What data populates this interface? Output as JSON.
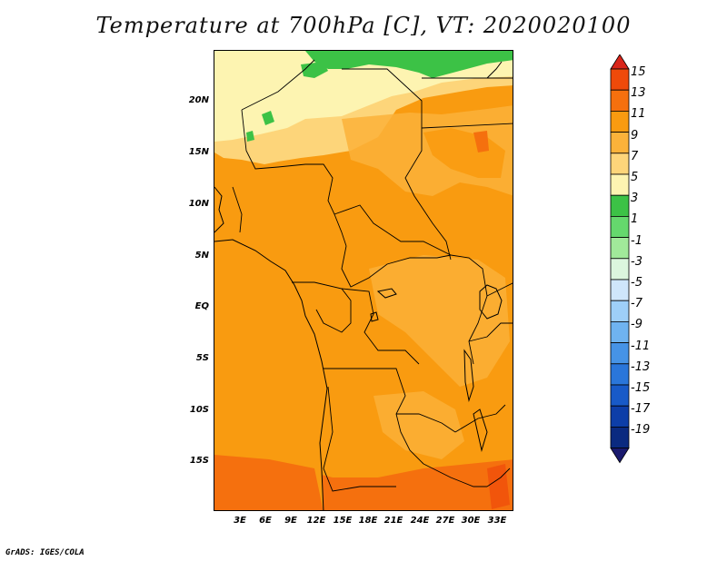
{
  "title": "Temperature at 700hPa [C], VT: 2020020100",
  "credit": "GrADS: IGES/COLA",
  "axes": {
    "lat_labels": [
      "20N",
      "15N",
      "10N",
      "5N",
      "EQ",
      "5S",
      "10S",
      "15S"
    ],
    "lon_labels": [
      "3E",
      "6E",
      "9E",
      "12E",
      "15E",
      "18E",
      "21E",
      "24E",
      "27E",
      "30E",
      "33E"
    ]
  },
  "colorbar": {
    "labels": [
      "15",
      "13",
      "11",
      "9",
      "7",
      "5",
      "3",
      "1",
      "-1",
      "-3",
      "-5",
      "-7",
      "-9",
      "-11",
      "-13",
      "-15",
      "-17",
      "-19"
    ],
    "colors": [
      "#d9251a",
      "#ef4a0a",
      "#f5700e",
      "#f99b10",
      "#fbb23a",
      "#fdd57a",
      "#fdf4b1",
      "#3cc246",
      "#65d86d",
      "#a1e99a",
      "#dcf6de",
      "#cfe6fb",
      "#9ecff8",
      "#6fb3f0",
      "#4693e6",
      "#2a76da",
      "#185ac8",
      "#0d3ea8",
      "#0a2a80",
      "#1a1a6e"
    ]
  },
  "legend_colors": {
    "warm_dark": "#f5700e",
    "warm_mid": "#f99b10",
    "warm_light": "#fbb23a",
    "pale": "#fdd57a",
    "paler": "#fdf4b1",
    "green": "#3cc246"
  }
}
